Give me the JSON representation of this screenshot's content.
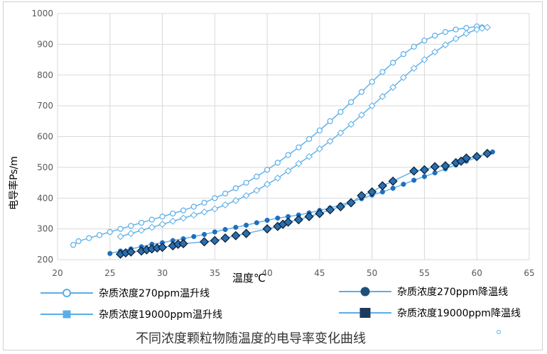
{
  "chart_data": {
    "type": "scatter",
    "title": "不同浓度颗粒物随温度的电导率变化曲线",
    "xlabel": "温度℃",
    "ylabel": "电导率Ps/m",
    "xlim": [
      20,
      65
    ],
    "ylim": [
      200,
      1000
    ],
    "xticks": [
      "20",
      "25",
      "30",
      "35",
      "40",
      "45",
      "50",
      "55",
      "60",
      "65"
    ],
    "yticks": [
      "200",
      "300",
      "400",
      "500",
      "600",
      "700",
      "800",
      "900",
      "1000"
    ],
    "grid": true,
    "legend_position": "bottom",
    "series": [
      {
        "name": "杂质浓度270ppm温升线",
        "marker": "open-circle",
        "color": "#5aaee8",
        "x": [
          21.5,
          22,
          23,
          24,
          25,
          26,
          27,
          28,
          29,
          30,
          31,
          32,
          33,
          34,
          35,
          36,
          37,
          38,
          39,
          40,
          41,
          42,
          43,
          44,
          45,
          46,
          47,
          48,
          49,
          50,
          51,
          52,
          53,
          54,
          55,
          56,
          57,
          58,
          59,
          60,
          60.5
        ],
        "y": [
          248,
          260,
          270,
          280,
          290,
          300,
          310,
          320,
          330,
          340,
          350,
          360,
          372,
          385,
          400,
          415,
          432,
          450,
          470,
          492,
          515,
          540,
          565,
          592,
          620,
          650,
          680,
          712,
          745,
          778,
          810,
          840,
          868,
          892,
          912,
          928,
          940,
          948,
          953,
          958,
          955
        ]
      },
      {
        "name": "杂质浓度270ppm降温线",
        "marker": "filled-circle",
        "color": "#1f6fc0",
        "x": [
          25,
          26,
          27,
          28,
          29,
          30,
          31,
          32,
          33,
          34,
          35,
          36,
          37,
          38,
          39,
          40,
          41,
          42,
          43,
          44,
          45,
          46,
          47,
          48,
          49,
          50,
          51,
          52,
          53,
          54,
          55,
          56,
          57,
          58,
          59,
          60,
          61,
          61.5
        ],
        "y": [
          220,
          228,
          235,
          242,
          250,
          255,
          262,
          268,
          275,
          282,
          290,
          298,
          305,
          312,
          320,
          328,
          335,
          340,
          345,
          352,
          360,
          368,
          378,
          388,
          398,
          410,
          420,
          432,
          445,
          458,
          470,
          482,
          495,
          508,
          520,
          532,
          545,
          550
        ]
      },
      {
        "name": "杂质浓度19000ppm温升线",
        "marker": "open-square",
        "color": "#5aaee8",
        "x": [
          26,
          27,
          28,
          29,
          30,
          31,
          32,
          33,
          34,
          35,
          36,
          37,
          38,
          39,
          40,
          41,
          42,
          43,
          44,
          45,
          46,
          47,
          48,
          49,
          50,
          51,
          52,
          53,
          54,
          55,
          56,
          57,
          58,
          59,
          60,
          60.5,
          61
        ],
        "y": [
          275,
          285,
          295,
          305,
          315,
          325,
          335,
          345,
          355,
          365,
          378,
          392,
          408,
          425,
          445,
          465,
          488,
          512,
          535,
          560,
          585,
          612,
          640,
          670,
          700,
          730,
          760,
          792,
          822,
          850,
          875,
          898,
          918,
          935,
          948,
          952,
          955
        ]
      },
      {
        "name": "杂质浓度19000ppm降温线",
        "marker": "filled-diamond",
        "color": "#1c4f7a",
        "x": [
          26,
          26.5,
          27,
          28,
          28.5,
          29,
          29.5,
          30,
          31,
          31.5,
          32,
          34,
          35,
          36,
          37,
          38,
          40,
          41,
          41.5,
          42,
          43,
          44,
          45,
          46,
          47,
          48,
          49,
          50,
          51,
          52,
          54,
          55,
          56,
          57,
          58,
          58.5,
          59,
          60,
          61
        ],
        "y": [
          218,
          222,
          225,
          228,
          232,
          235,
          238,
          240,
          245,
          250,
          252,
          258,
          262,
          270,
          278,
          285,
          300,
          308,
          315,
          322,
          330,
          340,
          350,
          362,
          372,
          385,
          408,
          420,
          440,
          455,
          488,
          492,
          502,
          505,
          515,
          520,
          530,
          535,
          545
        ]
      }
    ]
  }
}
